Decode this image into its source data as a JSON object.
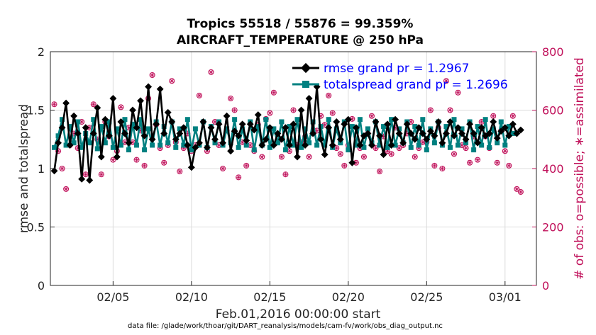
{
  "chart_data": {
    "type": "line",
    "title_line1": "Tropics 55518 / 55876 = 99.359%",
    "title_line2": "AIRCRAFT_TEMPERATURE @ 250 hPa",
    "xlabel": "Feb.01,2016 00:00:00 start",
    "ylabel_left": "rmse and totalspread",
    "ylabel_right": "# of obs: o=possible; ∗=assimilated",
    "footnote": "data file: /glade/work/thoar/git/DART_reanalysis/models/cam-fv/work/obs_diag_output.nc",
    "xlim": [
      1,
      32
    ],
    "ylim_left": [
      0,
      2
    ],
    "ylim_right": [
      0,
      800
    ],
    "x_ticks": [
      {
        "value": 5,
        "label": "02/05"
      },
      {
        "value": 10,
        "label": "02/10"
      },
      {
        "value": 15,
        "label": "02/15"
      },
      {
        "value": 20,
        "label": "02/20"
      },
      {
        "value": 25,
        "label": "02/25"
      },
      {
        "value": 30,
        "label": "03/01"
      }
    ],
    "y_ticks_left": [
      {
        "value": 0,
        "label": "0"
      },
      {
        "value": 0.5,
        "label": "0.5"
      },
      {
        "value": 1,
        "label": "1"
      },
      {
        "value": 1.5,
        "label": "1.5"
      },
      {
        "value": 2,
        "label": "2"
      }
    ],
    "y_ticks_right": [
      {
        "value": 0,
        "label": "0"
      },
      {
        "value": 200,
        "label": "200"
      },
      {
        "value": 400,
        "label": "400"
      },
      {
        "value": 600,
        "label": "600"
      },
      {
        "value": 800,
        "label": "800"
      }
    ],
    "series": [
      {
        "name": "rmse grand pr = 1.2967",
        "color": "#000000",
        "marker": "diamond",
        "x_start": 1.25,
        "x_step": 0.25,
        "values": [
          0.98,
          1.22,
          1.35,
          1.56,
          1.2,
          1.45,
          1.3,
          0.91,
          1.35,
          0.9,
          1.3,
          1.52,
          1.1,
          1.42,
          1.28,
          1.6,
          1.1,
          1.4,
          1.3,
          1.22,
          1.5,
          1.35,
          1.58,
          1.28,
          1.7,
          1.25,
          1.38,
          1.68,
          1.3,
          1.48,
          1.4,
          1.25,
          1.3,
          1.35,
          1.2,
          1.01,
          1.18,
          1.22,
          1.4,
          1.18,
          1.35,
          1.25,
          1.38,
          1.22,
          1.45,
          1.15,
          1.32,
          1.28,
          1.38,
          1.24,
          1.38,
          1.33,
          1.46,
          1.2,
          1.25,
          1.35,
          1.2,
          1.3,
          1.25,
          1.35,
          1.2,
          1.38,
          1.1,
          1.5,
          1.2,
          1.6,
          1.3,
          1.7,
          1.25,
          1.12,
          1.35,
          1.2,
          1.4,
          1.25,
          1.38,
          1.42,
          1.05,
          1.35,
          1.2,
          1.28,
          1.3,
          1.2,
          1.4,
          1.28,
          1.12,
          1.38,
          1.2,
          1.42,
          1.3,
          1.22,
          1.38,
          1.3,
          1.25,
          1.35,
          1.3,
          1.25,
          1.32,
          1.28,
          1.4,
          1.22,
          1.3,
          1.4,
          1.28,
          1.35,
          1.3,
          1.25,
          1.38,
          1.3,
          1.22,
          1.35,
          1.28,
          1.3,
          1.4,
          1.26,
          1.32,
          1.35,
          1.28,
          1.38,
          1.3,
          1.33
        ]
      },
      {
        "name": "totalspread grand pr = 1.2696",
        "color": "#008080",
        "marker": "square",
        "x_start": 1.25,
        "x_step": 0.25,
        "values": [
          1.18,
          1.28,
          1.42,
          1.2,
          1.36,
          1.22,
          1.4,
          1.18,
          1.3,
          1.22,
          1.42,
          1.17,
          1.36,
          1.22,
          1.4,
          1.18,
          1.34,
          1.2,
          1.42,
          1.16,
          1.38,
          1.2,
          1.42,
          1.16,
          1.34,
          1.2,
          1.4,
          1.2,
          1.36,
          1.22,
          1.4,
          1.18,
          1.34,
          1.2,
          1.42,
          1.16,
          1.34,
          1.2,
          1.4,
          1.18,
          1.36,
          1.22,
          1.4,
          1.2,
          1.34,
          1.22,
          1.42,
          1.18,
          1.34,
          1.2,
          1.4,
          1.16,
          1.36,
          1.2,
          1.42,
          1.18,
          1.34,
          1.22,
          1.4,
          1.16,
          1.36,
          1.2,
          1.42,
          1.18,
          1.34,
          1.22,
          1.4,
          1.2,
          1.36,
          1.2,
          1.42,
          1.18,
          1.34,
          1.22,
          1.4,
          1.16,
          1.36,
          1.2,
          1.42,
          1.18,
          1.34,
          1.22,
          1.4,
          1.2,
          1.36,
          1.18,
          1.42,
          1.2,
          1.34,
          1.22,
          1.4,
          1.18,
          1.36,
          1.2,
          1.42,
          1.16,
          1.34,
          1.22,
          1.4,
          1.2,
          1.36,
          1.18,
          1.42,
          1.2,
          1.34,
          1.22,
          1.4,
          1.16,
          1.36,
          1.2,
          1.42,
          1.18,
          1.34,
          1.22,
          1.4,
          1.2,
          1.36,
          1.3
        ]
      }
    ],
    "obs_counts": {
      "color": "#c0105a",
      "marker": "circle-star",
      "x_start": 1.25,
      "x_step": 0.25,
      "values": [
        620,
        460,
        400,
        330,
        480,
        520,
        470,
        560,
        380,
        540,
        620,
        500,
        380,
        560,
        510,
        430,
        460,
        610,
        490,
        540,
        490,
        430,
        530,
        410,
        640,
        720,
        550,
        470,
        420,
        480,
        700,
        490,
        390,
        470,
        520,
        460,
        480,
        650,
        560,
        460,
        730,
        560,
        480,
        400,
        530,
        640,
        600,
        370,
        490,
        410,
        480,
        460,
        550,
        440,
        570,
        590,
        660,
        490,
        440,
        380,
        460,
        600,
        480,
        490,
        510,
        440,
        520,
        530,
        580,
        550,
        650,
        590,
        470,
        450,
        410,
        480,
        570,
        420,
        470,
        440,
        520,
        580,
        470,
        390,
        510,
        460,
        450,
        540,
        470,
        480,
        520,
        560,
        440,
        470,
        490,
        490,
        600,
        410,
        540,
        400,
        700,
        600,
        450,
        660,
        480,
        470,
        420,
        510,
        430,
        560,
        510,
        470,
        580,
        420,
        530,
        460,
        410,
        580,
        330,
        320
      ]
    }
  }
}
